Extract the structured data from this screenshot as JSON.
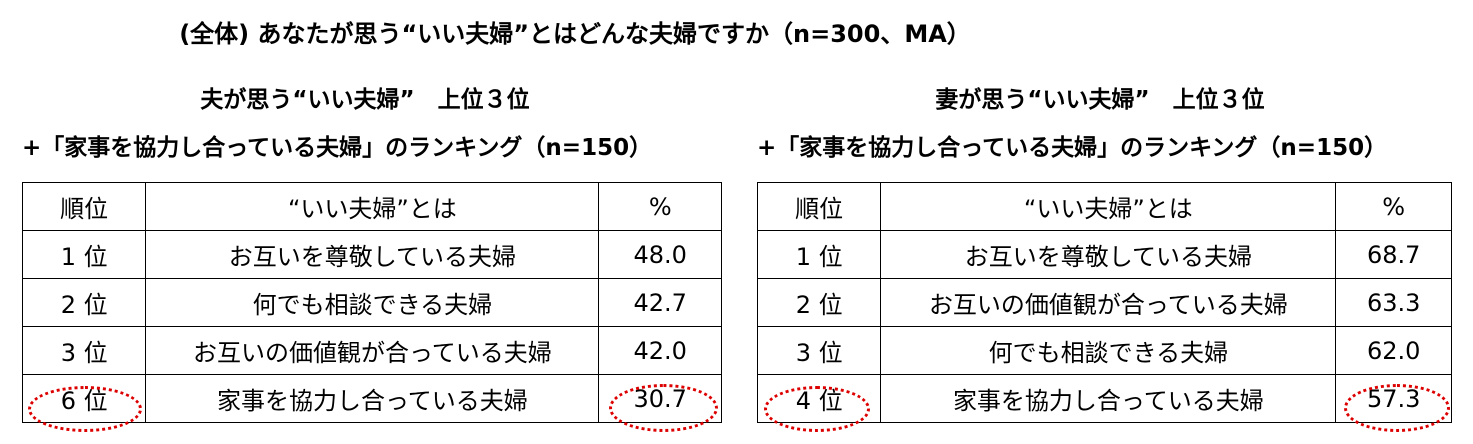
{
  "title": "(全体) あなたが思う“いい夫婦”とはどんな夫婦ですか（n=300、MA）",
  "tables": [
    {
      "heading": "夫が思う“いい夫婦”　上位３位",
      "subheading": "+「家事を協力し合っている夫婦」のランキング（n=150）",
      "columns": [
        "順位",
        "“いい夫婦”とは",
        "%"
      ],
      "rows": [
        [
          "1 位",
          "お互いを尊敬している夫婦",
          "48.0"
        ],
        [
          "2 位",
          "何でも相談できる夫婦",
          "42.7"
        ],
        [
          "3 位",
          "お互いの価値観が合っている夫婦",
          "42.0"
        ],
        [
          "6 位",
          "家事を協力し合っている夫婦",
          "30.7"
        ]
      ]
    },
    {
      "heading": "妻が思う“いい夫婦”　上位３位",
      "subheading": "+「家事を協力し合っている夫婦」のランキング（n=150）",
      "columns": [
        "順位",
        "“いい夫婦”とは",
        "%"
      ],
      "rows": [
        [
          "1 位",
          "お互いを尊敬している夫婦",
          "68.7"
        ],
        [
          "2 位",
          "お互いの価値観が合っている夫婦",
          "63.3"
        ],
        [
          "3 位",
          "何でも相談できる夫婦",
          "62.0"
        ],
        [
          "4 位",
          "家事を協力し合っている夫婦",
          "57.3"
        ]
      ]
    }
  ]
}
